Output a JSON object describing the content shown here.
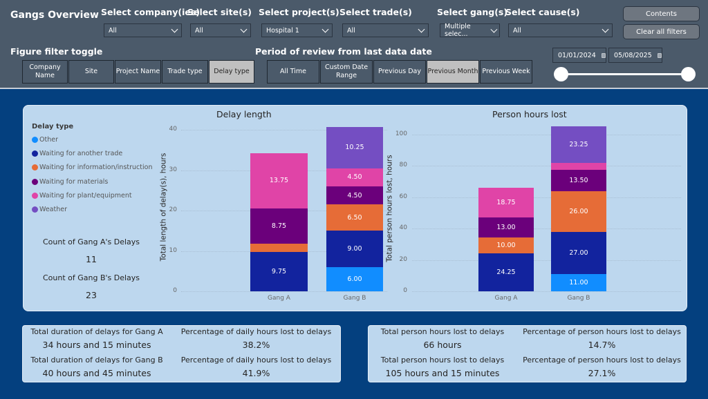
{
  "header": {
    "title": "Gangs Overview",
    "filters": [
      {
        "label": "Select company(ies)",
        "value": "All"
      },
      {
        "label": "Select site(s)",
        "value": "All"
      },
      {
        "label": "Select project(s)",
        "value": "Hospital 1"
      },
      {
        "label": "Select trade(s)",
        "value": "All"
      },
      {
        "label": "Select gang(s)",
        "value": "Multiple selec..."
      },
      {
        "label": "Select cause(s)",
        "value": "All"
      }
    ],
    "contents_label": "Contents",
    "clear_filters_label": "Clear all filters",
    "figure_toggle_label": "Figure filter toggle",
    "figure_toggle_buttons": [
      {
        "label": "Company Name",
        "active": false
      },
      {
        "label": "Site",
        "active": false
      },
      {
        "label": "Project Name",
        "active": false
      },
      {
        "label": "Trade type",
        "active": false
      },
      {
        "label": "Delay type",
        "active": true
      }
    ],
    "period_label": "Period of review from last data date",
    "period_buttons": [
      {
        "label": "All Time",
        "active": false
      },
      {
        "label": "Custom Date Range",
        "active": false
      },
      {
        "label": "Previous Day",
        "active": false
      },
      {
        "label": "Previous Month",
        "active": true
      },
      {
        "label": "Previous Week",
        "active": false
      }
    ],
    "date_start": "01/01/2024",
    "date_end": "05/08/2025",
    "date_range_fraction": [
      0,
      1
    ]
  },
  "legend": {
    "title": "Delay type",
    "items": [
      {
        "label": "Other",
        "color": "#118dff"
      },
      {
        "label": "Waiting for another trade",
        "color": "#12239e"
      },
      {
        "label": "Waiting for information/instruction",
        "color": "#e66c37"
      },
      {
        "label": "Waiting for materials",
        "color": "#6b007b"
      },
      {
        "label": "Waiting for plant/equipment",
        "color": "#e044a7"
      },
      {
        "label": "Weather",
        "color": "#744ec2"
      }
    ]
  },
  "kpis": {
    "gang_a_count_label": "Count of Gang A's Delays",
    "gang_a_count": "11",
    "gang_b_count_label": "Count of Gang B's Delays",
    "gang_b_count": "23"
  },
  "chart_data": [
    {
      "type": "bar",
      "stacked": true,
      "title": "Delay length",
      "xlabel": "",
      "ylabel": "Total length of delay(s), hours",
      "ylim": [
        0,
        40
      ],
      "yticks": [
        0,
        10,
        20,
        30,
        40
      ],
      "grid": true,
      "categories": [
        "Gang A",
        "Gang B"
      ],
      "series": [
        {
          "name": "Other",
          "values": [
            0,
            6.0
          ]
        },
        {
          "name": "Waiting for another trade",
          "values": [
            9.75,
            9.0
          ]
        },
        {
          "name": "Waiting for information/instruction",
          "values": [
            2.0,
            6.5
          ]
        },
        {
          "name": "Waiting for materials",
          "values": [
            8.75,
            4.5
          ]
        },
        {
          "name": "Waiting for plant/equipment",
          "values": [
            13.75,
            4.5
          ]
        },
        {
          "name": "Weather",
          "values": [
            0,
            10.25
          ]
        }
      ],
      "data_labels": [
        [
          "",
          "6.00"
        ],
        [
          "9.75",
          "9.00"
        ],
        [
          "",
          "6.50"
        ],
        [
          "8.75",
          "4.50"
        ],
        [
          "13.75",
          "4.50"
        ],
        [
          "",
          "10.25"
        ]
      ]
    },
    {
      "type": "bar",
      "stacked": true,
      "title": "Person hours lost",
      "xlabel": "",
      "ylabel": "Total person hours lost, hours",
      "ylim": [
        0,
        100
      ],
      "yticks": [
        0,
        20,
        40,
        60,
        80,
        100
      ],
      "grid": true,
      "categories": [
        "Gang A",
        "Gang B"
      ],
      "series": [
        {
          "name": "Other",
          "values": [
            0,
            11.0
          ]
        },
        {
          "name": "Waiting for another trade",
          "values": [
            24.25,
            27.0
          ]
        },
        {
          "name": "Waiting for information/instruction",
          "values": [
            10.0,
            26.0
          ]
        },
        {
          "name": "Waiting for materials",
          "values": [
            13.0,
            13.5
          ]
        },
        {
          "name": "Waiting for plant/equipment",
          "values": [
            18.75,
            4.5
          ]
        },
        {
          "name": "Weather",
          "values": [
            0,
            23.25
          ]
        }
      ],
      "data_labels": [
        [
          "",
          "11.00"
        ],
        [
          "24.25",
          "27.00"
        ],
        [
          "10.00",
          "26.00"
        ],
        [
          "13.00",
          "13.50"
        ],
        [
          "18.75",
          ""
        ],
        [
          "",
          "23.25"
        ]
      ]
    }
  ],
  "summary_left": [
    {
      "label": "Total duration of delays for Gang A",
      "value": "34 hours and 15 minutes"
    },
    {
      "label": "Percentage of daily hours lost to delays",
      "value": "38.2%"
    },
    {
      "label": "Total duration of delays for Gang B",
      "value": "40 hours and 45 minutes"
    },
    {
      "label": "Percentage of daily hours lost to delays",
      "value": "41.9%"
    }
  ],
  "summary_right": [
    {
      "label": "Total person hours lost to delays",
      "value": "66 hours"
    },
    {
      "label": "Percentage of person hours lost to delays",
      "value": "14.7%"
    },
    {
      "label": "Total person hours lost to delays",
      "value": "105 hours and 15 minutes"
    },
    {
      "label": "Percentage of person hours lost to delays",
      "value": "27.1%"
    }
  ]
}
